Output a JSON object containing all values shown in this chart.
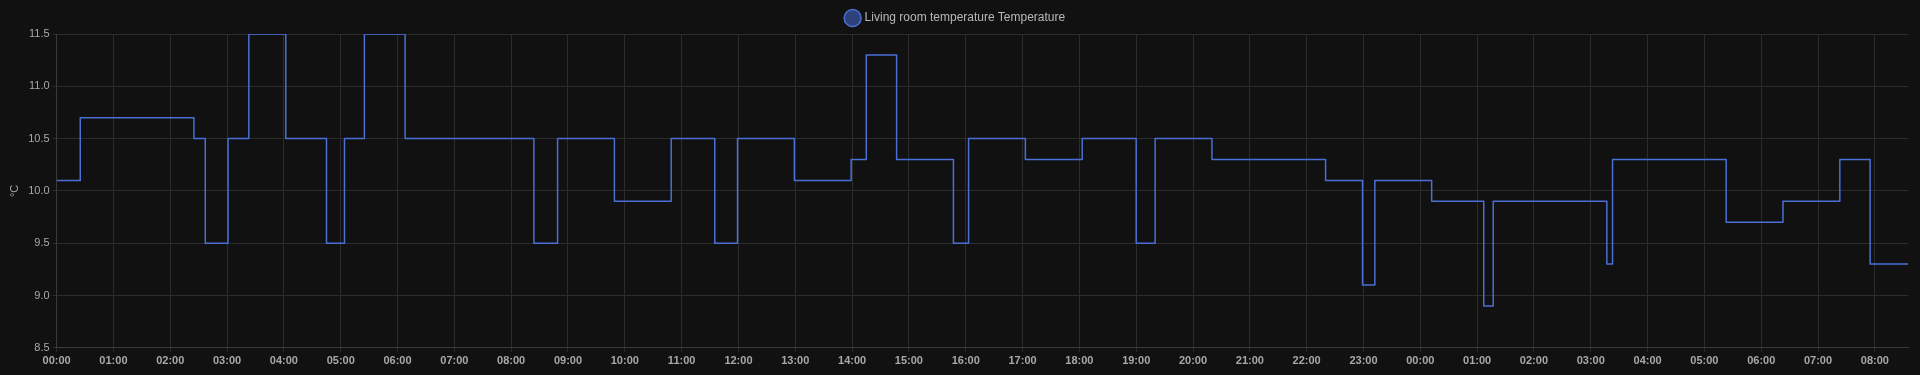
{
  "chart_data": {
    "type": "step",
    "ylabel": "°C",
    "legend": "top",
    "grid": true,
    "marker": "none",
    "line_style": "solid",
    "xlim": [
      "--01-01T00:00",
      "--01-02T08:35"
    ],
    "ylim": [
      8.5,
      11.5
    ],
    "yticks": [
      {
        "value": 8.5,
        "label": "8.5"
      },
      {
        "value": 9,
        "label": "9.0"
      },
      {
        "value": 9.5,
        "label": "9.5"
      },
      {
        "value": 10,
        "label": "10.0"
      },
      {
        "value": 10.5,
        "label": "10.5"
      },
      {
        "value": 11,
        "label": "11.0"
      },
      {
        "value": 11.5,
        "label": "11.5"
      }
    ],
    "xticks": [
      {
        "value": "--01-01T00:00",
        "label": "00:00"
      },
      {
        "value": "--01-01T01:00",
        "label": "01:00"
      },
      {
        "value": "--01-01T02:00",
        "label": "02:00"
      },
      {
        "value": "--01-01T03:00",
        "label": "03:00"
      },
      {
        "value": "--01-01T04:00",
        "label": "04:00"
      },
      {
        "value": "--01-01T05:00",
        "label": "05:00"
      },
      {
        "value": "--01-01T06:00",
        "label": "06:00"
      },
      {
        "value": "--01-01T07:00",
        "label": "07:00"
      },
      {
        "value": "--01-01T08:00",
        "label": "08:00"
      },
      {
        "value": "--01-01T09:00",
        "label": "09:00"
      },
      {
        "value": "--01-01T10:00",
        "label": "10:00"
      },
      {
        "value": "--01-01T11:00",
        "label": "11:00"
      },
      {
        "value": "--01-01T12:00",
        "label": "12:00"
      },
      {
        "value": "--01-01T13:00",
        "label": "13:00"
      },
      {
        "value": "--01-01T14:00",
        "label": "14:00"
      },
      {
        "value": "--01-01T15:00",
        "label": "15:00"
      },
      {
        "value": "--01-01T16:00",
        "label": "16:00"
      },
      {
        "value": "--01-01T17:00",
        "label": "17:00"
      },
      {
        "value": "--01-01T18:00",
        "label": "18:00"
      },
      {
        "value": "--01-01T19:00",
        "label": "19:00"
      },
      {
        "value": "--01-01T20:00",
        "label": "20:00"
      },
      {
        "value": "--01-01T21:00",
        "label": "21:00"
      },
      {
        "value": "--01-01T22:00",
        "label": "22:00"
      },
      {
        "value": "--01-01T23:00",
        "label": "23:00"
      },
      {
        "value": "--01-02T00:00",
        "label": "00:00"
      },
      {
        "value": "--01-02T01:00",
        "label": "01:00"
      },
      {
        "value": "--01-02T02:00",
        "label": "02:00"
      },
      {
        "value": "--01-02T03:00",
        "label": "03:00"
      },
      {
        "value": "--01-02T04:00",
        "label": "04:00"
      },
      {
        "value": "--01-02T05:00",
        "label": "05:00"
      },
      {
        "value": "--01-02T06:00",
        "label": "06:00"
      },
      {
        "value": "--01-02T07:00",
        "label": "07:00"
      },
      {
        "value": "--01-02T08:00",
        "label": "08:00"
      }
    ],
    "series": [
      {
        "name": "Living room temperature Temperature",
        "color": "#4a6fd6",
        "x": [
          "--01-01T00:00",
          "--01-01T00:25",
          "--01-01T02:25",
          "--01-01T02:37",
          "--01-01T03:01",
          "--01-01T03:23",
          "--01-01T04:02",
          "--01-01T04:45",
          "--01-01T05:04",
          "--01-01T05:25",
          "--01-01T06:08",
          "--01-01T08:24",
          "--01-01T08:49",
          "--01-01T09:49",
          "--01-01T10:49",
          "--01-01T11:35",
          "--01-01T11:59",
          "--01-01T12:59",
          "--01-01T13:59",
          "--01-01T14:15",
          "--01-01T14:47",
          "--01-01T15:47",
          "--01-01T16:03",
          "--01-01T17:03",
          "--01-01T18:03",
          "--01-01T19:00",
          "--01-01T19:20",
          "--01-01T20:20",
          "--01-01T22:20",
          "--01-01T22:59",
          "--01-01T23:12",
          "--01-02T00:12",
          "--01-02T01:07",
          "--01-02T01:17",
          "--01-02T03:17",
          "--01-02T03:23",
          "--01-02T05:23",
          "--01-02T06:23",
          "--01-02T07:23",
          "--01-02T07:55",
          "--01-02T08:35"
        ],
        "values": [
          10.1,
          10.7,
          10.5,
          9.5,
          10.5,
          11.5,
          10.5,
          9.5,
          10.5,
          11.5,
          10.5,
          9.5,
          10.5,
          9.9,
          10.5,
          9.5,
          10.5,
          10.1,
          10.3,
          11.3,
          10.3,
          9.5,
          10.5,
          10.3,
          10.5,
          9.5,
          10.5,
          10.3,
          10.1,
          9.1,
          10.1,
          9.9,
          8.9,
          9.9,
          9.3,
          10.3,
          9.7,
          9.9,
          10.3,
          9.3,
          9.3
        ]
      }
    ]
  }
}
